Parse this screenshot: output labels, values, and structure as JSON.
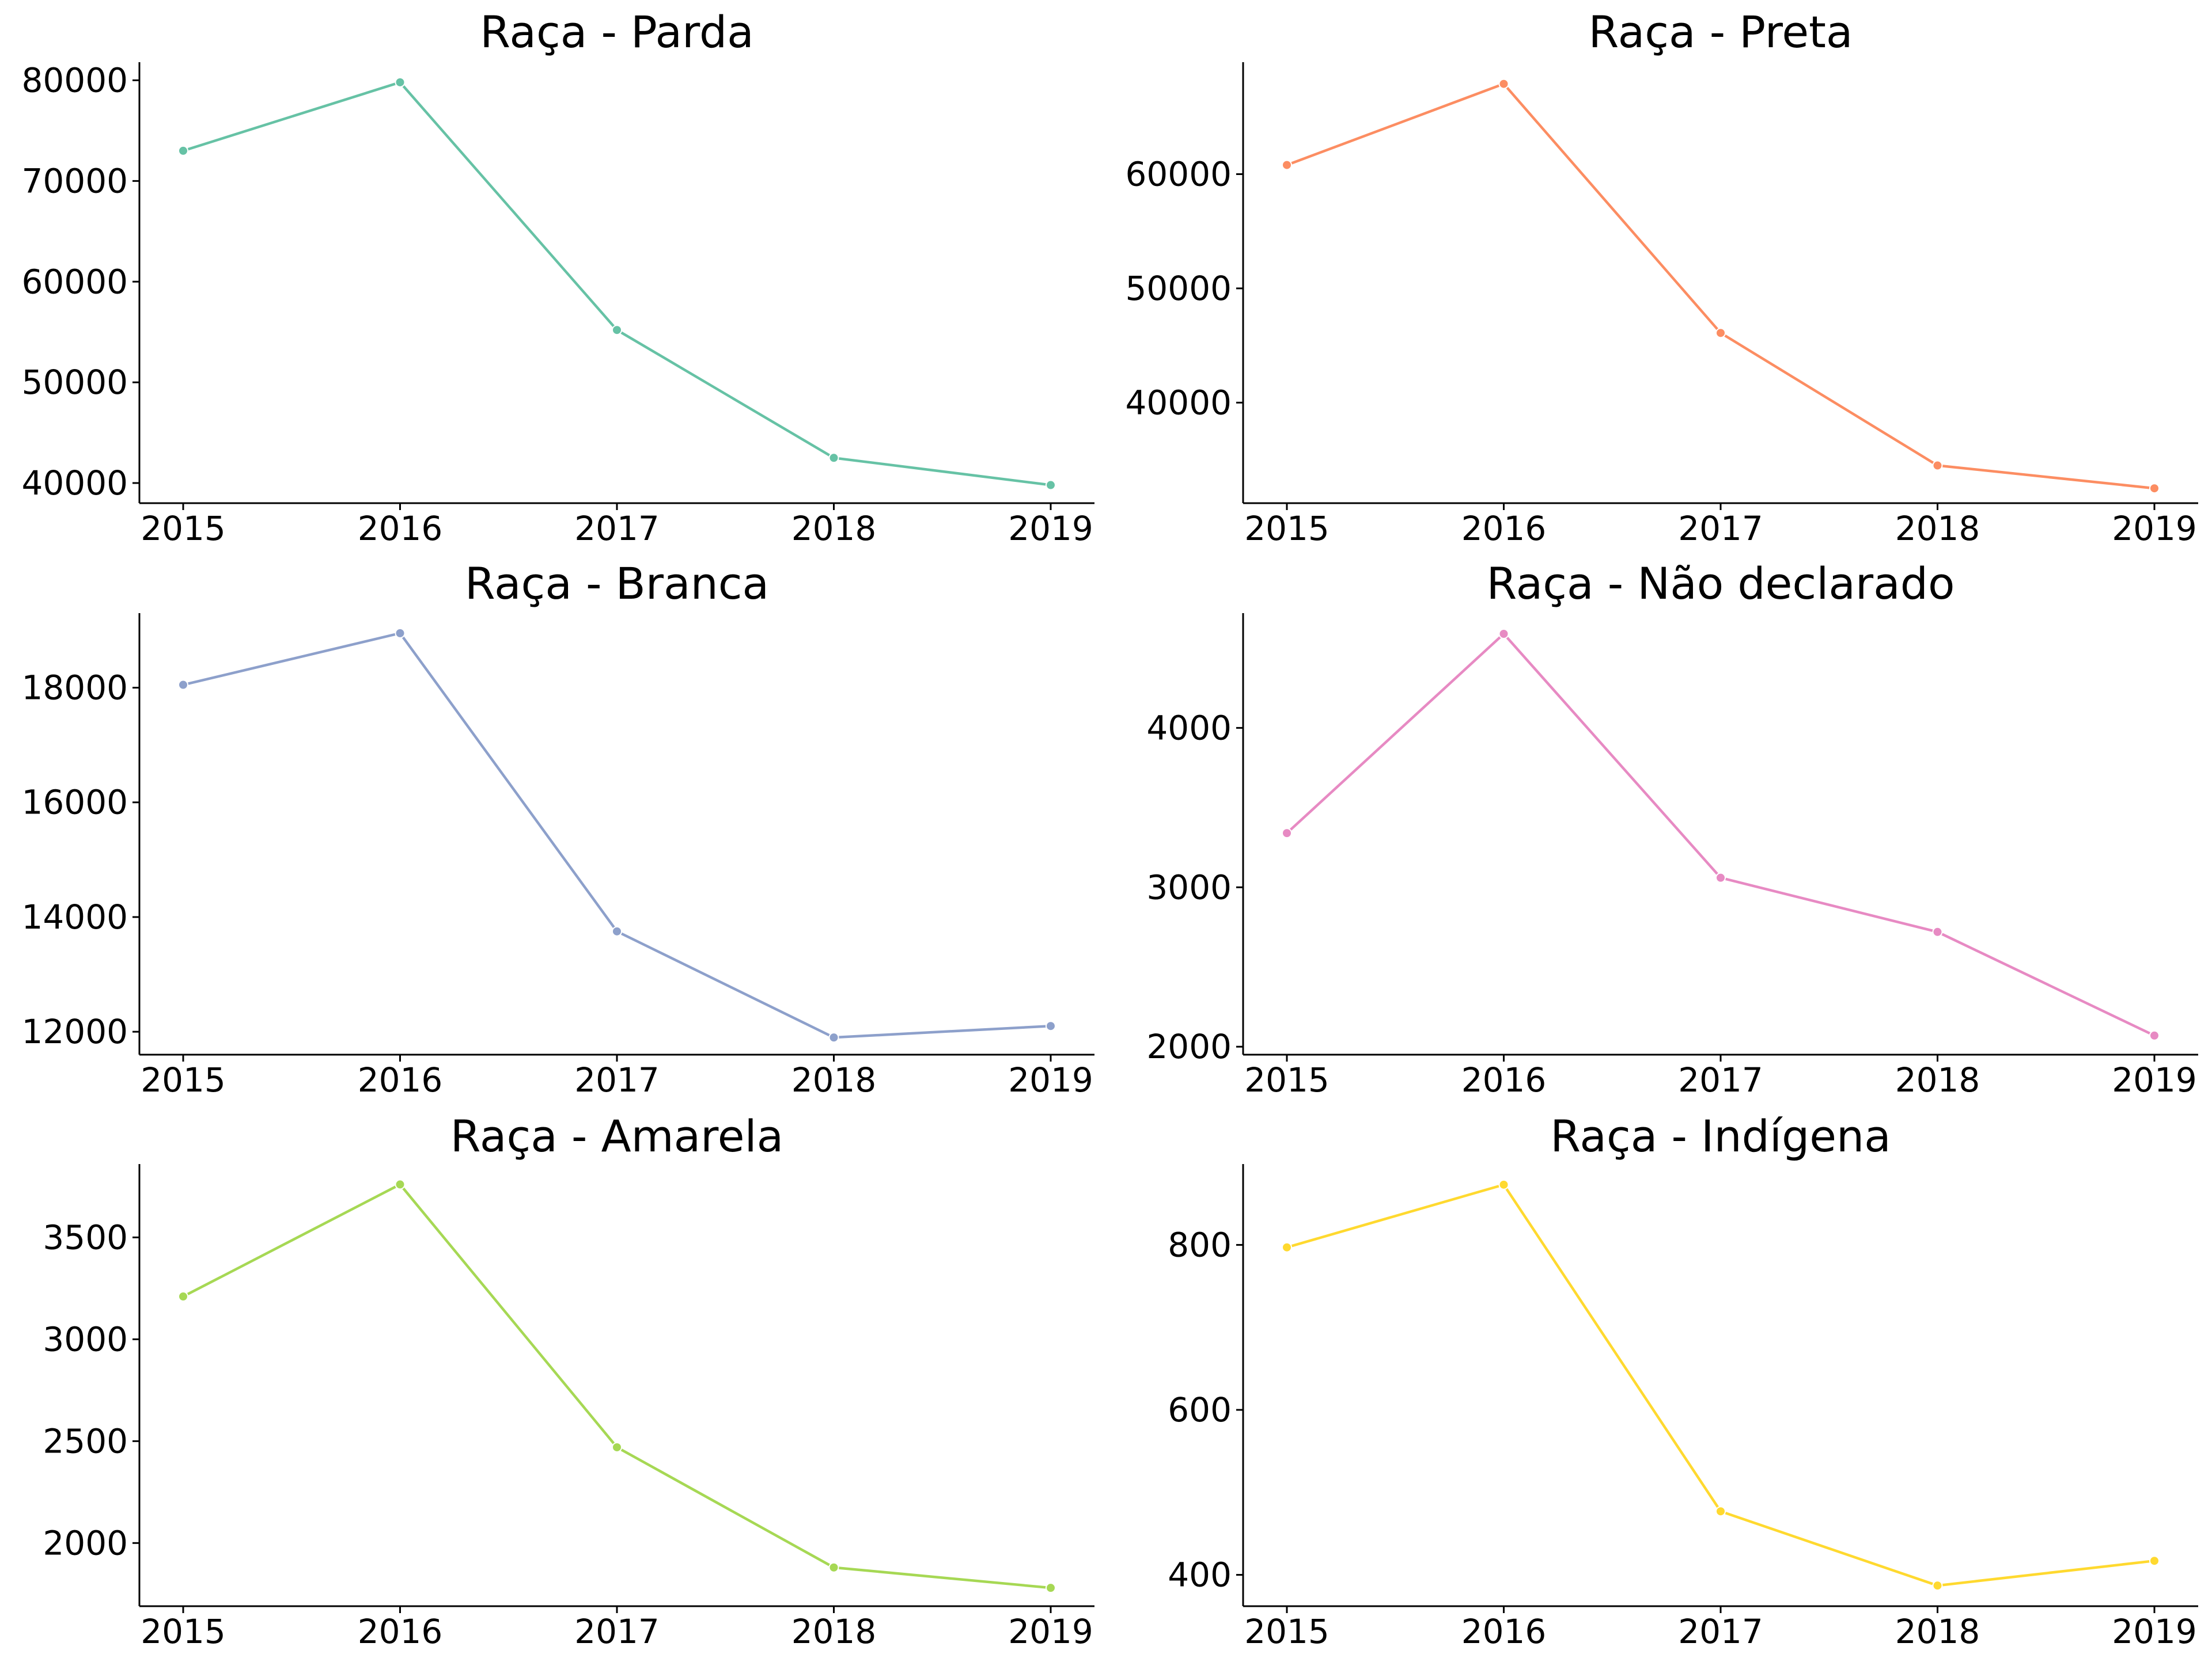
{
  "chart_data": [
    {
      "type": "line",
      "title": "Raça - Parda",
      "color": "#66c2a5",
      "x": [
        "2015",
        "2016",
        "2017",
        "2018",
        "2019"
      ],
      "values": [
        73000,
        79800,
        55200,
        42500,
        39800
      ],
      "ylim": [
        38000,
        81800
      ],
      "yticks": [
        40000,
        50000,
        60000,
        70000,
        80000
      ],
      "ytick_labels": [
        "40000",
        "50000",
        "60000",
        "70000",
        "80000"
      ]
    },
    {
      "type": "line",
      "title": "Raça - Preta",
      "color": "#fc8d62",
      "x": [
        "2015",
        "2016",
        "2017",
        "2018",
        "2019"
      ],
      "values": [
        60800,
        67900,
        46100,
        34500,
        32500
      ],
      "ylim": [
        31200,
        69800
      ],
      "yticks": [
        40000,
        50000,
        60000
      ],
      "ytick_labels": [
        "40000",
        "50000",
        "60000"
      ]
    },
    {
      "type": "line",
      "title": "Raça - Branca",
      "color": "#8da0cb",
      "x": [
        "2015",
        "2016",
        "2017",
        "2018",
        "2019"
      ],
      "values": [
        18050,
        18950,
        13750,
        11900,
        12100
      ],
      "ylim": [
        11600,
        19300
      ],
      "yticks": [
        12000,
        14000,
        16000,
        18000
      ],
      "ytick_labels": [
        "12000",
        "14000",
        "16000",
        "18000"
      ]
    },
    {
      "type": "line",
      "title": "Raça - Não declarado",
      "color": "#e78ac3",
      "x": [
        "2015",
        "2016",
        "2017",
        "2018",
        "2019"
      ],
      "values": [
        3340,
        4590,
        3060,
        2720,
        2070
      ],
      "ylim": [
        1950,
        4720
      ],
      "yticks": [
        2000,
        3000,
        4000
      ],
      "ytick_labels": [
        "2000",
        "3000",
        "4000"
      ]
    },
    {
      "type": "line",
      "title": "Raça - Amarela",
      "color": "#a6d854",
      "x": [
        "2015",
        "2016",
        "2017",
        "2018",
        "2019"
      ],
      "values": [
        3210,
        3760,
        2470,
        1880,
        1780
      ],
      "ylim": [
        1690,
        3860
      ],
      "yticks": [
        2000,
        2500,
        3000,
        3500
      ],
      "ytick_labels": [
        "2000",
        "2500",
        "3000",
        "3500"
      ]
    },
    {
      "type": "line",
      "title": "Raça - Indígena",
      "color": "#ffd92f",
      "x": [
        "2015",
        "2016",
        "2017",
        "2018",
        "2019"
      ],
      "values": [
        797,
        873,
        477,
        387,
        417
      ],
      "ylim": [
        362,
        898
      ],
      "yticks": [
        400,
        600,
        800
      ],
      "ytick_labels": [
        "400",
        "600",
        "800"
      ]
    }
  ]
}
